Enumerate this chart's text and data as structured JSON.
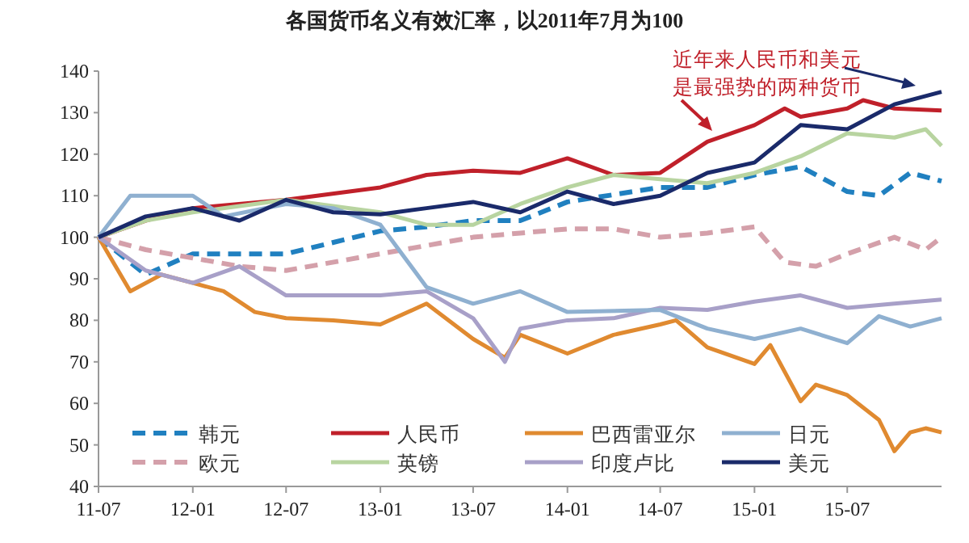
{
  "chart_data": {
    "type": "line",
    "title": "各国货币名义有效汇率，以2011年7月为100",
    "annotations": [
      "近年来人民币和美元是最强势的两种货币"
    ],
    "xlim": [
      "2011-07",
      "2016-01"
    ],
    "xticks": [
      {
        "value": "2011-07",
        "label": "11-07"
      },
      {
        "value": "2012-01",
        "label": "12-01"
      },
      {
        "value": "2012-07",
        "label": "12-07"
      },
      {
        "value": "2013-01",
        "label": "13-01"
      },
      {
        "value": "2013-07",
        "label": "13-07"
      },
      {
        "value": "2014-01",
        "label": "14-01"
      },
      {
        "value": "2014-07",
        "label": "14-07"
      },
      {
        "value": "2015-01",
        "label": "15-01"
      },
      {
        "value": "2015-07",
        "label": "15-07"
      }
    ],
    "ylim": [
      40,
      140
    ],
    "yticks": [
      40,
      50,
      60,
      70,
      80,
      90,
      100,
      110,
      120,
      130,
      140
    ],
    "grid": false,
    "legend": "bottom",
    "marker": "none",
    "series": [
      {
        "name": "韩元",
        "color": "#2080c0",
        "line_style": "dashed",
        "x": [
          "2011-07",
          "2011-10",
          "2012-01",
          "2012-07",
          "2013-01",
          "2013-04",
          "2013-07",
          "2013-10",
          "2014-01",
          "2014-07",
          "2014-10",
          "2015-01",
          "2015-04",
          "2015-07",
          "2015-09",
          "2015-11",
          "2016-01"
        ],
        "values": [
          100,
          91,
          96,
          96,
          101.5,
          102.5,
          104,
          104,
          108.5,
          112,
          112,
          115,
          117,
          111,
          110,
          115.5,
          113.5
        ]
      },
      {
        "name": "欧元",
        "color": "#d4a0aa",
        "line_style": "dashed",
        "x": [
          "2011-07",
          "2011-10",
          "2012-01",
          "2012-04",
          "2012-07",
          "2013-01",
          "2013-04",
          "2013-07",
          "2013-10",
          "2014-01",
          "2014-04",
          "2014-07",
          "2014-10",
          "2015-01",
          "2015-03",
          "2015-05",
          "2015-07",
          "2015-10",
          "2015-12",
          "2016-01"
        ],
        "values": [
          100,
          97,
          95,
          93,
          92,
          96,
          98,
          100,
          101,
          102,
          102,
          100,
          101,
          102.5,
          94,
          93,
          96,
          100,
          97,
          100
        ]
      },
      {
        "name": "人民币",
        "color": "#c0202a",
        "line_style": "solid",
        "x": [
          "2011-07",
          "2011-10",
          "2012-01",
          "2012-07",
          "2013-01",
          "2013-04",
          "2013-07",
          "2013-10",
          "2014-01",
          "2014-04",
          "2014-07",
          "2014-10",
          "2015-01",
          "2015-03",
          "2015-04",
          "2015-07",
          "2015-08",
          "2015-10",
          "2016-01"
        ],
        "values": [
          100,
          104,
          107,
          109,
          112,
          115,
          116,
          115.5,
          119,
          115,
          115.5,
          123,
          127,
          131,
          129,
          131,
          133,
          131,
          130.5
        ]
      },
      {
        "name": "英镑",
        "color": "#b8d4a0",
        "line_style": "solid",
        "x": [
          "2011-07",
          "2011-10",
          "2012-01",
          "2012-07",
          "2013-01",
          "2013-04",
          "2013-07",
          "2013-10",
          "2014-01",
          "2014-04",
          "2014-07",
          "2014-10",
          "2015-01",
          "2015-04",
          "2015-07",
          "2015-10",
          "2015-12",
          "2016-01"
        ],
        "values": [
          100,
          104,
          106,
          109,
          106,
          103,
          103,
          108,
          112,
          115,
          114,
          113,
          115.5,
          119.5,
          125,
          124,
          126,
          122
        ]
      },
      {
        "name": "巴西雷亚尔",
        "color": "#e08a30",
        "line_style": "solid",
        "x": [
          "2011-07",
          "2011-09",
          "2011-11",
          "2012-01",
          "2012-03",
          "2012-05",
          "2012-07",
          "2012-10",
          "2013-01",
          "2013-04",
          "2013-07",
          "2013-09",
          "2013-10",
          "2014-01",
          "2014-04",
          "2014-07",
          "2014-08",
          "2014-10",
          "2015-01",
          "2015-02",
          "2015-04",
          "2015-05",
          "2015-07",
          "2015-09",
          "2015-10",
          "2015-11",
          "2015-12",
          "2016-01"
        ],
        "values": [
          100,
          87,
          91,
          89,
          87,
          82,
          80.5,
          80,
          79,
          84,
          75.5,
          71,
          76.5,
          72,
          76.5,
          79,
          80,
          73.5,
          69.5,
          74,
          60.5,
          64.5,
          62,
          56,
          48.5,
          53,
          54,
          53
        ]
      },
      {
        "name": "印度卢比",
        "color": "#a8a0c8",
        "line_style": "solid",
        "x": [
          "2011-07",
          "2011-10",
          "2012-01",
          "2012-04",
          "2012-07",
          "2012-10",
          "2013-01",
          "2013-04",
          "2013-07",
          "2013-09",
          "2013-10",
          "2014-01",
          "2014-04",
          "2014-07",
          "2014-10",
          "2015-01",
          "2015-04",
          "2015-07",
          "2015-10",
          "2016-01"
        ],
        "values": [
          100,
          92,
          89,
          93,
          86,
          86,
          86,
          87,
          80.5,
          70,
          78,
          80,
          80.5,
          83,
          82.5,
          84.5,
          86,
          83,
          84,
          85
        ]
      },
      {
        "name": "日元",
        "color": "#8fb0d0",
        "line_style": "solid",
        "x": [
          "2011-07",
          "2011-09",
          "2012-01",
          "2012-03",
          "2012-07",
          "2012-10",
          "2013-01",
          "2013-04",
          "2013-07",
          "2013-10",
          "2014-01",
          "2014-07",
          "2014-10",
          "2015-01",
          "2015-04",
          "2015-07",
          "2015-09",
          "2015-11",
          "2016-01"
        ],
        "values": [
          100,
          110,
          110,
          105,
          108,
          107,
          103,
          88,
          84,
          87,
          82,
          82.5,
          78,
          75.5,
          78,
          74.5,
          81,
          78.5,
          80.5
        ]
      },
      {
        "name": "美元",
        "color": "#1a2a6a",
        "line_style": "solid",
        "x": [
          "2011-07",
          "2011-10",
          "2012-01",
          "2012-04",
          "2012-07",
          "2012-10",
          "2013-01",
          "2013-04",
          "2013-07",
          "2013-10",
          "2014-01",
          "2014-04",
          "2014-07",
          "2014-10",
          "2015-01",
          "2015-04",
          "2015-07",
          "2015-10",
          "2016-01"
        ],
        "values": [
          100,
          105,
          107,
          104,
          109,
          106,
          105.5,
          107,
          108.5,
          106,
          111,
          108,
          110,
          115.5,
          118,
          127,
          126,
          132,
          135
        ]
      }
    ]
  }
}
